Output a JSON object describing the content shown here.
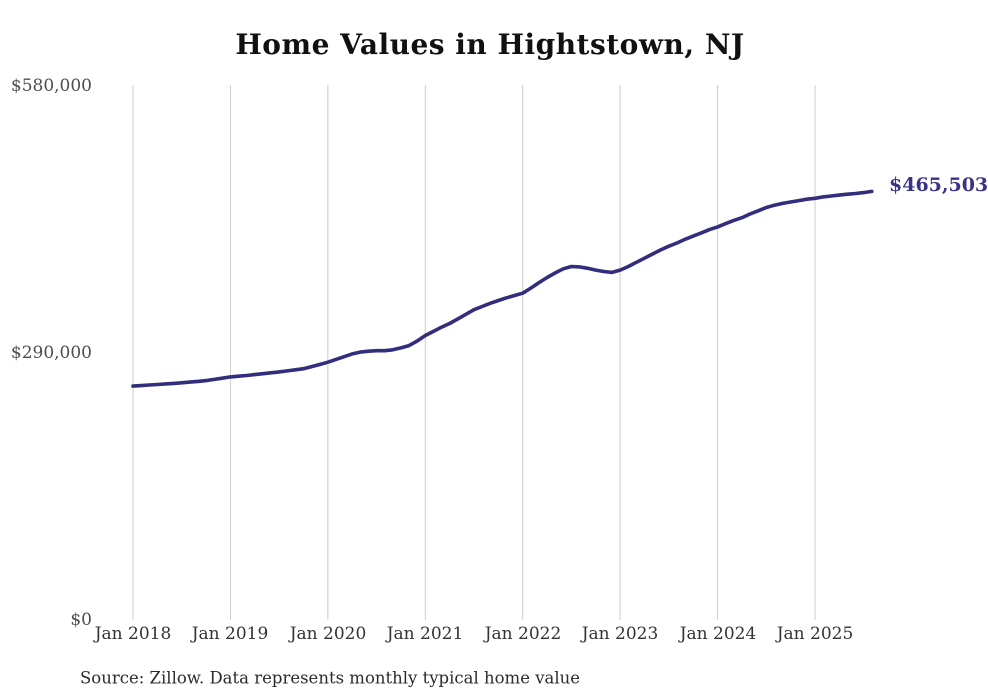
{
  "chart": {
    "title": "Home Values in Hightstown, NJ",
    "source": "Source: Zillow. Data represents monthly typical home value",
    "colors": {
      "line": "#332d7e",
      "annotation": "#3a3387",
      "gridline": "#cccccc",
      "title_text": "#111111",
      "y_axis_text": "#4d4d4d",
      "x_axis_text": "#333333"
    }
  },
  "chart_data": {
    "type": "line",
    "title": "Home Values in Hightstown, NJ",
    "xlabel": "",
    "ylabel": "",
    "ylim": [
      0,
      580000
    ],
    "grid": "vertical-only",
    "legend": "none",
    "x_start_month": "2018-01",
    "x_end_month": "2025-08",
    "x_tick_labels": [
      "Jan 2018",
      "Jan 2019",
      "Jan 2020",
      "Jan 2021",
      "Jan 2022",
      "Jan 2023",
      "Jan 2024",
      "Jan 2025"
    ],
    "x_tick_month_index": [
      0,
      12,
      24,
      36,
      48,
      60,
      72,
      84
    ],
    "y_ticks": [
      {
        "label": "$0",
        "value": 0
      },
      {
        "label": "$290,000",
        "value": 290000
      },
      {
        "label": "$580,000",
        "value": 580000
      }
    ],
    "series_name": "Typical home value (monthly)",
    "values": [
      254000,
      254600,
      255200,
      255800,
      256400,
      257000,
      257600,
      258400,
      259200,
      260000,
      261300,
      262600,
      264000,
      264800,
      265600,
      266500,
      267500,
      268500,
      269500,
      270600,
      271800,
      273000,
      275200,
      277500,
      280000,
      283000,
      286000,
      289000,
      291000,
      292000,
      292500,
      292500,
      293500,
      295500,
      298000,
      303000,
      309000,
      313500,
      318000,
      322000,
      327000,
      332000,
      337000,
      340500,
      344000,
      347000,
      350000,
      352500,
      355000,
      360500,
      366500,
      372000,
      377000,
      381500,
      384000,
      383500,
      382000,
      380000,
      378500,
      377500,
      380000,
      384000,
      388500,
      393000,
      397500,
      402000,
      406000,
      409500,
      413500,
      417000,
      420500,
      424000,
      427000,
      430500,
      434000,
      437000,
      441000,
      444500,
      448000,
      450500,
      452500,
      454000,
      455500,
      457000,
      458000,
      459500,
      460500,
      461500,
      462500,
      463200,
      464200,
      465503
    ],
    "annotation": {
      "text": "$465,503",
      "value": 465503
    }
  }
}
